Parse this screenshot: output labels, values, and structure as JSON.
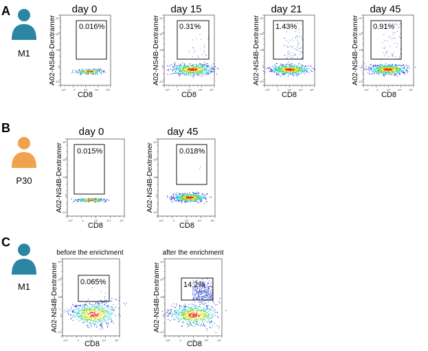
{
  "colors": {
    "teal": "#2a86a3",
    "orange": "#f2a14e",
    "dot_blue": "#1c2fc4",
    "dot_cyan": "#24c6e0",
    "dot_green": "#6fd43f",
    "dot_yellow": "#f2e81e",
    "dot_red": "#e8261f"
  },
  "axis": {
    "ylabel": "A02-NS4B-Dextramer",
    "xlabel": "CD8",
    "x_ticks": [
      "-10³",
      "0",
      "10³",
      "10⁴",
      "10⁵"
    ],
    "y_ticks": [
      "10⁵",
      "10⁴",
      "10³",
      "0",
      "-10³"
    ]
  },
  "panels": [
    {
      "letter": "A",
      "donor": {
        "label": "M1",
        "color": "teal",
        "icon": "person-icon"
      },
      "plots": [
        {
          "title": "day 0",
          "gate_pct": "0.016%",
          "gate_pop": 0.016
        },
        {
          "title": "day 15",
          "gate_pct": "0.31%",
          "gate_pop": 0.31
        },
        {
          "title": "day 21",
          "gate_pct": "1.43%",
          "gate_pop": 1.43
        },
        {
          "title": "day 45",
          "gate_pct": "0.91%",
          "gate_pop": 0.91
        }
      ]
    },
    {
      "letter": "B",
      "donor": {
        "label": "P30",
        "color": "orange",
        "icon": "person-icon"
      },
      "plots": [
        {
          "title": "day 0",
          "gate_pct": "0.015%",
          "gate_pop": 0.015
        },
        {
          "title": "day 45",
          "gate_pct": "0.018%",
          "gate_pop": 0.018
        }
      ]
    },
    {
      "letter": "C",
      "donor": {
        "label": "M1",
        "color": "teal",
        "icon": "person-icon"
      },
      "plots": [
        {
          "title": "before the enrichment",
          "gate_pct": "0.065%",
          "gate_pop": 0.065
        },
        {
          "title": "after the enrichment",
          "gate_pct": "14.2%",
          "gate_pop": 14.2
        }
      ]
    }
  ]
}
